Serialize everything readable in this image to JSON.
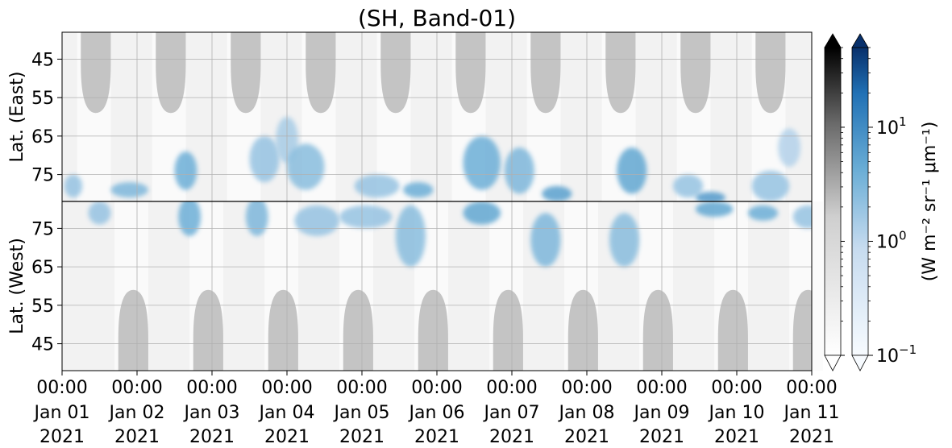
{
  "chart_data": {
    "type": "heatmap",
    "title": "(SH, Band-01)",
    "time_axis": {
      "range": [
        "2021-01-01 00:00",
        "2021-01-11 00:00"
      ],
      "ticks": [
        {
          "time": "00:00",
          "date": "Jan 01",
          "year": "2021"
        },
        {
          "time": "00:00",
          "date": "Jan 02",
          "year": "2021"
        },
        {
          "time": "00:00",
          "date": "Jan 03",
          "year": "2021"
        },
        {
          "time": "00:00",
          "date": "Jan 04",
          "year": "2021"
        },
        {
          "time": "00:00",
          "date": "Jan 05",
          "year": "2021"
        },
        {
          "time": "00:00",
          "date": "Jan 06",
          "year": "2021"
        },
        {
          "time": "00:00",
          "date": "Jan 07",
          "year": "2021"
        },
        {
          "time": "00:00",
          "date": "Jan 08",
          "year": "2021"
        },
        {
          "time": "00:00",
          "date": "Jan 09",
          "year": "2021"
        },
        {
          "time": "00:00",
          "date": "Jan 10",
          "year": "2021"
        },
        {
          "time": "00:00",
          "date": "Jan 11",
          "year": "2021"
        }
      ]
    },
    "panels": [
      {
        "name": "east",
        "ylabel": "Lat. (East)",
        "ylim": [
          38,
          82
        ],
        "yticks": [
          "45",
          "55",
          "65",
          "75"
        ],
        "y_increases": "downward"
      },
      {
        "name": "west",
        "ylabel": "Lat. (West)",
        "ylim": [
          38,
          82
        ],
        "yticks": [
          "75",
          "65",
          "55",
          "45"
        ],
        "y_increases": "upward"
      }
    ],
    "grid": true,
    "colorbars": [
      {
        "cmap": "Greys",
        "extend": "both",
        "scale": "log",
        "range": [
          0.1,
          50
        ]
      },
      {
        "cmap": "Blues",
        "extend": "both",
        "scale": "log",
        "range": [
          0.1,
          50
        ],
        "tick_labels": [
          {
            "value": 10,
            "base": "10",
            "exp": "1"
          },
          {
            "value": 1,
            "base": "10",
            "exp": "0"
          },
          {
            "value": 0.1,
            "base": "10",
            "exp": "−1"
          }
        ],
        "label": "(W m⁻² sr⁻¹ μm⁻¹)"
      }
    ],
    "colors": {
      "daylight_mask": "#c4c4c4",
      "blue_low": "#e2eef9",
      "blue_mid": "#6aaed6",
      "blue_high": "#08306b",
      "grey_low": "#f4f4f4",
      "grey_high": "#000000"
    },
    "daylight_blocks_east": [
      {
        "center_day": 0.45,
        "halfwidth_days": 0.2,
        "lat_reach": 59
      },
      {
        "center_day": 1.45,
        "halfwidth_days": 0.2,
        "lat_reach": 59
      },
      {
        "center_day": 2.45,
        "halfwidth_days": 0.2,
        "lat_reach": 59
      },
      {
        "center_day": 3.45,
        "halfwidth_days": 0.2,
        "lat_reach": 59
      },
      {
        "center_day": 4.45,
        "halfwidth_days": 0.2,
        "lat_reach": 59
      },
      {
        "center_day": 5.45,
        "halfwidth_days": 0.2,
        "lat_reach": 59
      },
      {
        "center_day": 6.45,
        "halfwidth_days": 0.2,
        "lat_reach": 59
      },
      {
        "center_day": 7.45,
        "halfwidth_days": 0.2,
        "lat_reach": 59
      },
      {
        "center_day": 8.45,
        "halfwidth_days": 0.2,
        "lat_reach": 59
      },
      {
        "center_day": 9.45,
        "halfwidth_days": 0.2,
        "lat_reach": 59
      }
    ],
    "daylight_blocks_west": [
      {
        "center_day": 0.95,
        "halfwidth_days": 0.2,
        "lat_reach": 59
      },
      {
        "center_day": 1.95,
        "halfwidth_days": 0.2,
        "lat_reach": 59
      },
      {
        "center_day": 2.95,
        "halfwidth_days": 0.2,
        "lat_reach": 59
      },
      {
        "center_day": 3.95,
        "halfwidth_days": 0.2,
        "lat_reach": 59
      },
      {
        "center_day": 4.95,
        "halfwidth_days": 0.2,
        "lat_reach": 59
      },
      {
        "center_day": 5.95,
        "halfwidth_days": 0.2,
        "lat_reach": 59
      },
      {
        "center_day": 6.95,
        "halfwidth_days": 0.2,
        "lat_reach": 59
      },
      {
        "center_day": 7.95,
        "halfwidth_days": 0.2,
        "lat_reach": 59
      },
      {
        "center_day": 8.95,
        "halfwidth_days": 0.2,
        "lat_reach": 59
      },
      {
        "center_day": 9.95,
        "halfwidth_days": 0.2,
        "lat_reach": 59
      }
    ],
    "emission_blobs": [
      {
        "panel": "east",
        "day": 0.15,
        "lat": 78,
        "dday": 0.12,
        "dlat": 3,
        "value": 2
      },
      {
        "panel": "east",
        "day": 0.9,
        "lat": 79,
        "dday": 0.25,
        "dlat": 2,
        "value": 3
      },
      {
        "panel": "east",
        "day": 1.65,
        "lat": 74,
        "dday": 0.15,
        "dlat": 5,
        "value": 4
      },
      {
        "panel": "east",
        "day": 2.7,
        "lat": 71,
        "dday": 0.2,
        "dlat": 6,
        "value": 2
      },
      {
        "panel": "east",
        "day": 3.0,
        "lat": 66,
        "dday": 0.15,
        "dlat": 6,
        "value": 1.5
      },
      {
        "panel": "east",
        "day": 3.25,
        "lat": 73,
        "dday": 0.25,
        "dlat": 6,
        "value": 2.5
      },
      {
        "panel": "east",
        "day": 4.2,
        "lat": 78,
        "dday": 0.3,
        "dlat": 3,
        "value": 2
      },
      {
        "panel": "east",
        "day": 4.75,
        "lat": 79,
        "dday": 0.2,
        "dlat": 2,
        "value": 4
      },
      {
        "panel": "east",
        "day": 5.6,
        "lat": 72,
        "dday": 0.25,
        "dlat": 7,
        "value": 4
      },
      {
        "panel": "east",
        "day": 6.1,
        "lat": 74,
        "dday": 0.2,
        "dlat": 6,
        "value": 3
      },
      {
        "panel": "east",
        "day": 6.6,
        "lat": 80,
        "dday": 0.2,
        "dlat": 2,
        "value": 6
      },
      {
        "panel": "east",
        "day": 7.6,
        "lat": 74,
        "dday": 0.2,
        "dlat": 6,
        "value": 5
      },
      {
        "panel": "east",
        "day": 8.35,
        "lat": 78,
        "dday": 0.2,
        "dlat": 3,
        "value": 2
      },
      {
        "panel": "east",
        "day": 8.65,
        "lat": 81,
        "dday": 0.2,
        "dlat": 1.5,
        "value": 7
      },
      {
        "panel": "east",
        "day": 9.45,
        "lat": 78,
        "dday": 0.25,
        "dlat": 4,
        "value": 2
      },
      {
        "panel": "east",
        "day": 9.7,
        "lat": 68,
        "dday": 0.15,
        "dlat": 5,
        "value": 1.2
      },
      {
        "panel": "west",
        "day": 0.5,
        "lat": 79,
        "dday": 0.15,
        "dlat": 3,
        "value": 2
      },
      {
        "panel": "west",
        "day": 1.7,
        "lat": 78,
        "dday": 0.15,
        "dlat": 5,
        "value": 4
      },
      {
        "panel": "west",
        "day": 2.6,
        "lat": 78,
        "dday": 0.15,
        "dlat": 5,
        "value": 3
      },
      {
        "panel": "west",
        "day": 3.4,
        "lat": 77,
        "dday": 0.3,
        "dlat": 4,
        "value": 2
      },
      {
        "panel": "west",
        "day": 4.05,
        "lat": 78,
        "dday": 0.35,
        "dlat": 3,
        "value": 2
      },
      {
        "panel": "west",
        "day": 4.65,
        "lat": 73,
        "dday": 0.2,
        "dlat": 8,
        "value": 2.5
      },
      {
        "panel": "west",
        "day": 5.6,
        "lat": 79,
        "dday": 0.25,
        "dlat": 3,
        "value": 5
      },
      {
        "panel": "west",
        "day": 6.45,
        "lat": 72,
        "dday": 0.2,
        "dlat": 7,
        "value": 3
      },
      {
        "panel": "west",
        "day": 7.5,
        "lat": 72,
        "dday": 0.2,
        "dlat": 7,
        "value": 2.5
      },
      {
        "panel": "west",
        "day": 8.7,
        "lat": 80,
        "dday": 0.25,
        "dlat": 2,
        "value": 5
      },
      {
        "panel": "west",
        "day": 9.35,
        "lat": 79,
        "dday": 0.2,
        "dlat": 2,
        "value": 4
      },
      {
        "panel": "west",
        "day": 9.95,
        "lat": 78,
        "dday": 0.2,
        "dlat": 3,
        "value": 2
      }
    ]
  }
}
